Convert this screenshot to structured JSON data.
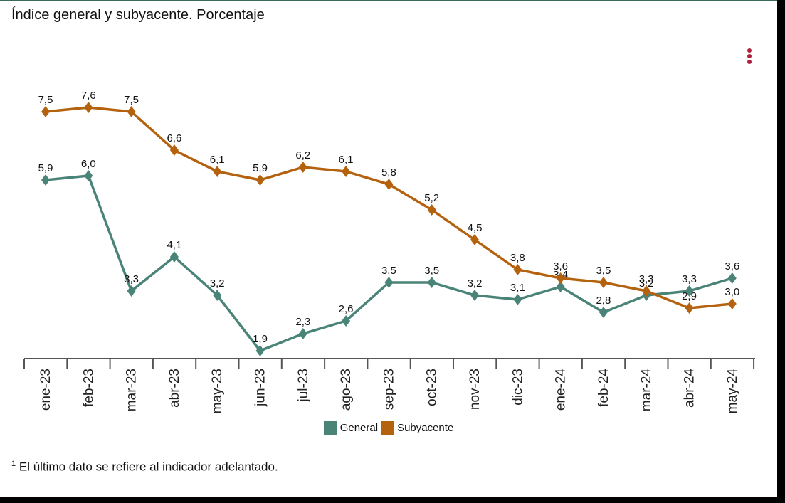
{
  "title": "Índice general y subyacente. Porcentaje",
  "menu_icon": "more-vertical-icon",
  "footnote": {
    "marker": "1",
    "text": "El último dato se refiere al indicador adelantado."
  },
  "colors": {
    "general": "#4a8478",
    "subyacente": "#b5620f",
    "axis": "#555555"
  },
  "chart_data": {
    "type": "line",
    "title": "Índice general y subyacente. Porcentaje",
    "categories": [
      "ene-23",
      "feb-23",
      "mar-23",
      "abr-23",
      "may-23",
      "jun-23",
      "jul-23",
      "ago-23",
      "sep-23",
      "oct-23",
      "nov-23",
      "dic-23",
      "ene-24",
      "feb-24",
      "mar-24",
      "abr-24",
      "may-24"
    ],
    "series": [
      {
        "name": "General",
        "values": [
          5.9,
          6.0,
          3.3,
          4.1,
          3.2,
          1.9,
          2.3,
          2.6,
          3.5,
          3.5,
          3.2,
          3.1,
          3.4,
          2.8,
          3.2,
          3.3,
          3.6
        ],
        "labels": [
          "5,9",
          "6,0",
          "3,3",
          "4,1",
          "3,2",
          "1,9",
          "2,3",
          "2,6",
          "3,5",
          "3,5",
          "3,2",
          "3,1",
          "3,4",
          "2,8",
          "3,2",
          "3,3",
          "3,6"
        ]
      },
      {
        "name": "Subyacente",
        "values": [
          7.5,
          7.6,
          7.5,
          6.6,
          6.1,
          5.9,
          6.2,
          6.1,
          5.8,
          5.2,
          4.5,
          3.8,
          3.6,
          3.5,
          3.3,
          2.9,
          3.0
        ],
        "labels": [
          "7,5",
          "7,6",
          "7,5",
          "6,6",
          "6,1",
          "5,9",
          "6,2",
          "6,1",
          "5,8",
          "5,2",
          "4,5",
          "3,8",
          "3,6",
          "3,5",
          "3,3",
          "2,9",
          "3,0"
        ]
      }
    ],
    "legend_position": "bottom-center",
    "grid": false
  }
}
